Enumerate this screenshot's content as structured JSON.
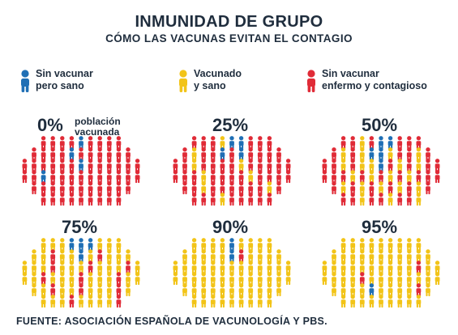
{
  "header": {
    "title": "INMUNIDAD DE GRUPO",
    "subtitle": "CÓMO LAS VACUNAS EVITAN EL CONTAGIO"
  },
  "colors": {
    "unvaccinated_healthy": "#1f6fb5",
    "vaccinated_healthy": "#f2c418",
    "unvaccinated_sick": "#e02b37"
  },
  "legend": [
    {
      "key": "unvaccinated_healthy",
      "line1": "Sin vacunar",
      "line2": "pero sano"
    },
    {
      "key": "vaccinated_healthy",
      "line1": "Vacunado",
      "line2": "y sano"
    },
    {
      "key": "unvaccinated_sick",
      "line1": "Sin vacunar",
      "line2": "enfermo y contagioso"
    }
  ],
  "panels": [
    {
      "percent": "0%",
      "note1": "población",
      "note2": "vacunada",
      "vaccinated_fraction": 0.0
    },
    {
      "percent": "25%",
      "note1": "",
      "note2": "",
      "vaccinated_fraction": 0.25
    },
    {
      "percent": "50%",
      "note1": "",
      "note2": "",
      "vaccinated_fraction": 0.5
    },
    {
      "percent": "75%",
      "note1": "",
      "note2": "",
      "vaccinated_fraction": 0.75
    },
    {
      "percent": "90%",
      "note1": "",
      "note2": "",
      "vaccinated_fraction": 0.9
    },
    {
      "percent": "95%",
      "note1": "",
      "note2": "",
      "vaccinated_fraction": 0.95
    }
  ],
  "footer": {
    "source": "FUENTE: ASOCIACIÓN ESPAÑOLA DE VACUNOLOGÍA Y PBS."
  }
}
